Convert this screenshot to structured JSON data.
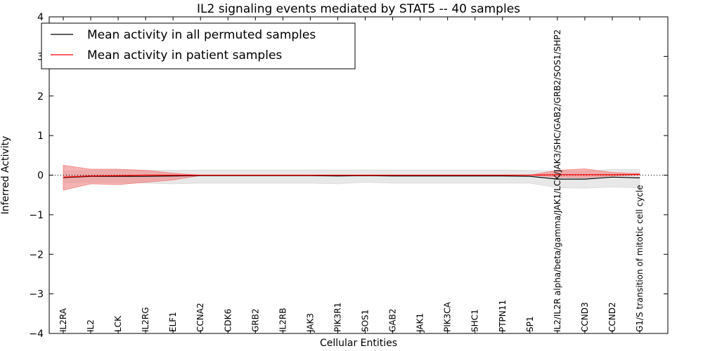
{
  "chart_data": {
    "type": "line",
    "title": "IL2 signaling events mediated by STAT5 -- 40 samples",
    "xlabel": "Cellular Entities",
    "ylabel": "Inferred Activity",
    "ylim": [
      -4,
      4
    ],
    "yticks": [
      4,
      3,
      2,
      1,
      0,
      -1,
      -2,
      -3,
      -4
    ],
    "ytick_labels": [
      "4",
      "3",
      "2",
      "1",
      "0",
      "−1",
      "−2",
      "−3",
      "−4"
    ],
    "grid": false,
    "legend_position": "top-left",
    "categories": [
      "IL2RA",
      "IL2",
      "LCK",
      "IL2RG",
      "ELF1",
      "CCNA2",
      "CDK6",
      "GRB2",
      "IL2RB",
      "JAK3",
      "PIK3R1",
      "SOS1",
      "GAB2",
      "JAK1",
      "PIK3CA",
      "SHC1",
      "PTPN11",
      "SP1",
      "IL2/IL2R alpha/beta/gamma/JAK1/LCK/JAK3/SHC/GAB2/GRB2/SOS1/SHP2",
      "CCND3",
      "CCND2",
      "G1/S transition of mitotic cell cycle"
    ],
    "series": [
      {
        "name": "Mean activity in all permuted samples",
        "color": "#000000",
        "band_color": "#d9d9d9",
        "values": [
          -0.06,
          -0.03,
          -0.03,
          -0.03,
          -0.02,
          -0.01,
          -0.01,
          -0.01,
          -0.01,
          -0.01,
          -0.02,
          -0.01,
          -0.02,
          -0.02,
          -0.02,
          -0.02,
          -0.02,
          -0.03,
          -0.1,
          -0.1,
          -0.05,
          -0.07
        ],
        "band_upper": [
          0.1,
          0.12,
          0.12,
          0.12,
          0.12,
          0.13,
          0.13,
          0.13,
          0.13,
          0.13,
          0.13,
          0.13,
          0.13,
          0.13,
          0.13,
          0.13,
          0.13,
          0.12,
          0.1,
          0.1,
          0.15,
          0.14
        ],
        "band_lower": [
          -0.2,
          -0.18,
          -0.18,
          -0.2,
          -0.22,
          -0.2,
          -0.2,
          -0.2,
          -0.2,
          -0.2,
          -0.22,
          -0.18,
          -0.2,
          -0.2,
          -0.2,
          -0.2,
          -0.2,
          -0.2,
          -0.32,
          -0.33,
          -0.3,
          -0.32
        ]
      },
      {
        "name": "Mean activity in patient samples",
        "color": "#ff0000",
        "band_color": "#f08080",
        "values": [
          -0.05,
          -0.02,
          -0.01,
          0.0,
          0.0,
          0.0,
          0.0,
          0.0,
          0.0,
          0.0,
          0.0,
          0.0,
          0.0,
          0.0,
          0.0,
          0.0,
          0.0,
          0.0,
          0.01,
          0.01,
          0.01,
          0.02
        ],
        "band_upper": [
          0.25,
          0.15,
          0.15,
          0.12,
          0.05,
          0.0,
          0.0,
          0.0,
          0.0,
          0.0,
          0.0,
          0.0,
          0.0,
          0.0,
          0.0,
          0.0,
          0.0,
          0.0,
          0.12,
          0.16,
          0.07,
          0.04
        ],
        "band_lower": [
          -0.38,
          -0.22,
          -0.24,
          -0.18,
          -0.12,
          -0.01,
          0.0,
          0.0,
          0.0,
          0.0,
          0.0,
          0.0,
          0.0,
          0.0,
          0.0,
          0.0,
          0.0,
          0.0,
          -0.05,
          -0.06,
          -0.02,
          0.0
        ]
      }
    ],
    "reference_line": {
      "y": 0,
      "style": "dotted"
    }
  }
}
